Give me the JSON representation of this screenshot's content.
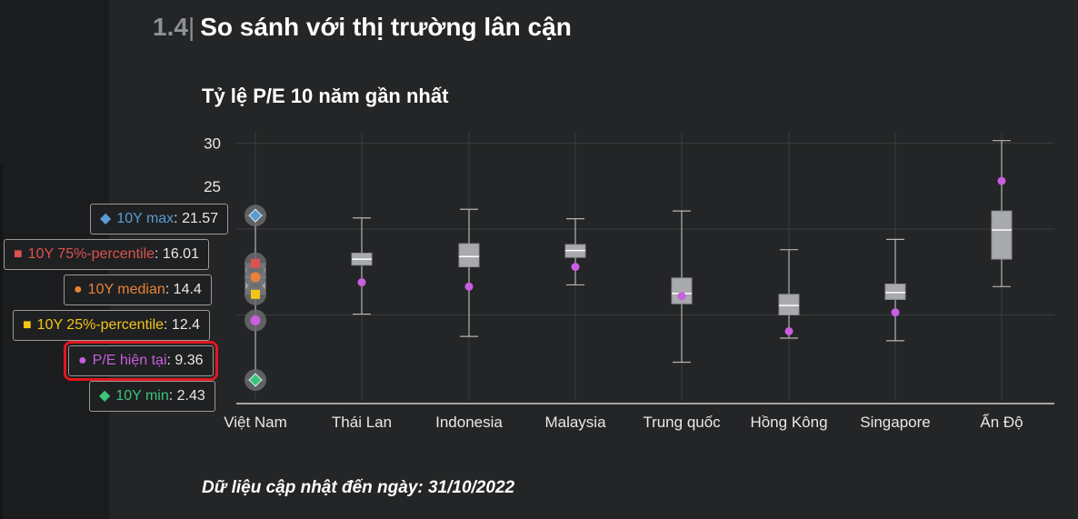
{
  "section": {
    "number": "1.4",
    "separator": "|",
    "title": "So sánh với thị trường lân cận"
  },
  "footer": "Dữ liệu cập nhật đến ngày: 31/10/2022",
  "colors": {
    "max": "#5b9bd5",
    "p75": "#d9534f",
    "median": "#e8823a",
    "p25": "#f5c518",
    "current": "#c85ee0",
    "min": "#3cc47c",
    "box": "#a9aaad",
    "whisker": "#b5b5b5",
    "grid": "#3a3b3d",
    "axis": "#d0d0d0"
  },
  "tooltips": [
    {
      "key": "max",
      "marker": "◆",
      "label": "10Y max",
      "value": "21.57"
    },
    {
      "key": "p75",
      "marker": "■",
      "label": "10Y 75%-percentile",
      "value": "16.01"
    },
    {
      "key": "median",
      "marker": "●",
      "label": "10Y median",
      "value": "14.4"
    },
    {
      "key": "p25",
      "marker": "■",
      "label": "10Y 25%-percentile",
      "value": "12.4"
    },
    {
      "key": "current",
      "marker": "●",
      "label": "P/E hiện tại",
      "value": "9.36"
    },
    {
      "key": "min",
      "marker": "◆",
      "label": "10Y min",
      "value": "2.43"
    }
  ],
  "chart_data": {
    "type": "boxplot",
    "title": "Tỷ lệ P/E 10 năm gần nhất",
    "xlabel": "",
    "ylabel": "",
    "ylim": [
      0,
      32
    ],
    "yticks": [
      25,
      30
    ],
    "grid": true,
    "categories": [
      "Việt Nam",
      "Thái Lan",
      "Indonesia",
      "Malaysia",
      "Trung quốc",
      "Hồng Kông",
      "Singapore",
      "Ấn Độ"
    ],
    "series": [
      {
        "min": 2.43,
        "q1": 12.4,
        "median": 14.4,
        "q3": 16.01,
        "max": 21.57,
        "current": 9.36
      },
      {
        "min": 10.1,
        "q1": 15.8,
        "median": 16.5,
        "q3": 17.2,
        "max": 21.3,
        "current": 13.8
      },
      {
        "min": 7.5,
        "q1": 15.6,
        "median": 16.8,
        "q3": 18.3,
        "max": 22.3,
        "current": 13.3
      },
      {
        "min": 13.5,
        "q1": 16.7,
        "median": 17.5,
        "q3": 18.2,
        "max": 21.2,
        "current": 15.6
      },
      {
        "min": 4.5,
        "q1": 11.3,
        "median": 12.5,
        "q3": 14.3,
        "max": 22.1,
        "current": 12.2
      },
      {
        "min": 7.3,
        "q1": 10.0,
        "median": 11.1,
        "q3": 12.4,
        "max": 17.6,
        "current": 8.1
      },
      {
        "min": 7.0,
        "q1": 11.8,
        "median": 12.6,
        "q3": 13.6,
        "max": 18.8,
        "current": 10.3
      },
      {
        "min": 13.3,
        "q1": 16.5,
        "median": 19.9,
        "q3": 22.1,
        "max": 30.3,
        "current": 25.6
      }
    ]
  }
}
